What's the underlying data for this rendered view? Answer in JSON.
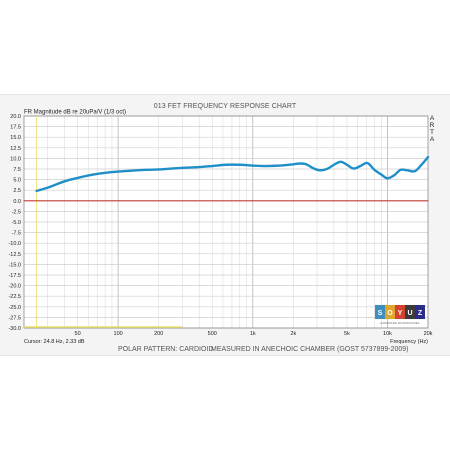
{
  "chart_data": {
    "type": "line",
    "title": "013 FET FREQUENCY RESPONSE CHART",
    "ylabel": "FR Magnitude dB re 20uPa/V (1/3 oct)",
    "xlabel": "Frequency (Hz)",
    "x_scale": "log",
    "xlim": [
      20,
      20000
    ],
    "ylim": [
      -30,
      20
    ],
    "grid": true,
    "y_ticks": [
      "20.0",
      "17.5",
      "15.0",
      "12.5",
      "10.0",
      "7.5",
      "5.0",
      "2.5",
      "0.0",
      "-2.5",
      "-5.0",
      "-7.5",
      "-10.0",
      "-12.5",
      "-15.0",
      "-17.5",
      "-20.0",
      "-22.5",
      "-25.0",
      "-27.5",
      "-30.0"
    ],
    "x_tick_labels": [
      {
        "x": 50,
        "label": "50"
      },
      {
        "x": 100,
        "label": "100"
      },
      {
        "x": 200,
        "label": "200"
      },
      {
        "x": 500,
        "label": "500"
      },
      {
        "x": 1000,
        "label": "1k"
      },
      {
        "x": 2000,
        "label": "2k"
      },
      {
        "x": 5000,
        "label": "5k"
      },
      {
        "x": 10000,
        "label": "10k"
      },
      {
        "x": 20000,
        "label": "20k"
      }
    ],
    "series": [
      {
        "color": "#1e8fc8",
        "x": [
          24.8,
          30,
          40,
          50,
          63,
          80,
          100,
          125,
          160,
          200,
          250,
          315,
          400,
          500,
          630,
          800,
          1000,
          1250,
          1600,
          2000,
          2250,
          2500,
          2800,
          3150,
          3600,
          4000,
          4500,
          5000,
          5600,
          6300,
          7100,
          8000,
          9000,
          10000,
          11200,
          12500,
          14000,
          16000,
          18000,
          20000
        ],
        "y": [
          2.33,
          3.1,
          4.6,
          5.4,
          6.1,
          6.6,
          6.9,
          7.1,
          7.3,
          7.4,
          7.6,
          7.8,
          7.95,
          8.2,
          8.5,
          8.5,
          8.3,
          8.2,
          8.3,
          8.6,
          8.8,
          8.6,
          7.7,
          7.2,
          7.6,
          8.5,
          9.2,
          8.5,
          7.6,
          8.2,
          8.9,
          7.3,
          6.2,
          5.3,
          6.0,
          7.3,
          7.2,
          7.0,
          8.6,
          10.3
        ]
      },
      {
        "color": "#c23a32",
        "x": [
          20,
          20000
        ],
        "y": [
          0.0,
          0.0
        ]
      }
    ],
    "cursor_text": "Cursor:  24.8 Hz, 2.33 dB",
    "side_label": [
      "A",
      "R",
      "T",
      "A"
    ],
    "footer_left": "POLAR PATTERN: CARDIOID",
    "footer_right": "MEASURED IN ANECHOIC CHAMBER (GOST 5737899-2009)",
    "logo": {
      "letters": [
        "S",
        "O",
        "Y",
        "U",
        "Z"
      ],
      "colors": [
        "#3f8fbe",
        "#e0a52c",
        "#d4412f",
        "#3b3b3b",
        "#2b2b8a"
      ],
      "subtitle": "HANDMADE MICROPHONES"
    }
  }
}
